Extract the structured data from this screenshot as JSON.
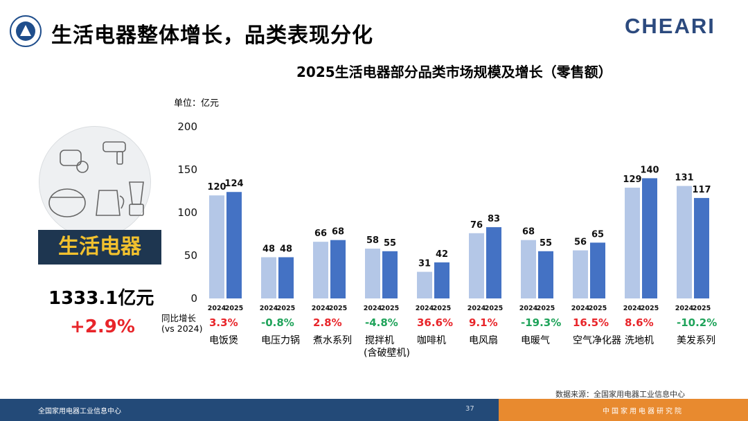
{
  "header": {
    "title": "生活电器整体增长，品类表现分化",
    "brand_logo": "CHEARI"
  },
  "left_panel": {
    "category_badge": "生活电器",
    "total_value": "1333.1亿元",
    "total_growth": "+2.9%"
  },
  "colors": {
    "bar_2024": "#b4c7e7",
    "bar_2025": "#4472c4",
    "growth_positive": "#e8252a",
    "growth_negative": "#1fa35a",
    "footer_left": "#234a78",
    "footer_right": "#e88a2f",
    "badge_bg": "#1e3650",
    "badge_text": "#f2c12e"
  },
  "chart_data": {
    "type": "bar",
    "title": "2025生活电器部分品类市场规模及增长（零售额）",
    "unit_label": "单位：亿元",
    "yticks": [
      "200",
      "150",
      "100",
      "50",
      "0"
    ],
    "ylim": [
      0,
      200
    ],
    "xlabel": "",
    "ylabel": "",
    "series_names": [
      "2024",
      "2025"
    ],
    "growth_row_label_line1": "同比增长",
    "growth_row_label_line2": "(vs 2024)",
    "categories": [
      {
        "name": "电饭煲",
        "name2": "",
        "v2024": 120,
        "v2025": 124,
        "growth": "3.3%",
        "growth_sign": "positive"
      },
      {
        "name": "电压力锅",
        "name2": "",
        "v2024": 48,
        "v2025": 48,
        "growth": "-0.8%",
        "growth_sign": "negative"
      },
      {
        "name": "煮水系列",
        "name2": "",
        "v2024": 66,
        "v2025": 68,
        "growth": "2.8%",
        "growth_sign": "positive"
      },
      {
        "name": "搅拌机",
        "name2": "(含破壁机)",
        "v2024": 58,
        "v2025": 55,
        "growth": "-4.8%",
        "growth_sign": "negative"
      },
      {
        "name": "咖啡机",
        "name2": "",
        "v2024": 31,
        "v2025": 42,
        "growth": "36.6%",
        "growth_sign": "positive"
      },
      {
        "name": "电风扇",
        "name2": "",
        "v2024": 76,
        "v2025": 83,
        "growth": "9.1%",
        "growth_sign": "positive"
      },
      {
        "name": "电暖气",
        "name2": "",
        "v2024": 68,
        "v2025": 55,
        "growth": "-19.3%",
        "growth_sign": "negative"
      },
      {
        "name": "空气净化器",
        "name2": "",
        "v2024": 56,
        "v2025": 65,
        "growth": "16.5%",
        "growth_sign": "positive"
      },
      {
        "name": "洗地机",
        "name2": "",
        "v2024": 129,
        "v2025": 140,
        "growth": "8.6%",
        "growth_sign": "positive"
      },
      {
        "name": "美发系列",
        "name2": "",
        "v2024": 131,
        "v2025": 117,
        "growth": "-10.2%",
        "growth_sign": "negative"
      }
    ]
  },
  "footer": {
    "source_note": "数据来源：全国家用电器工业信息中心",
    "left_text": "全国家用电器工业信息中心",
    "page_number": "37",
    "right_text": "中国家用电器研究院"
  }
}
